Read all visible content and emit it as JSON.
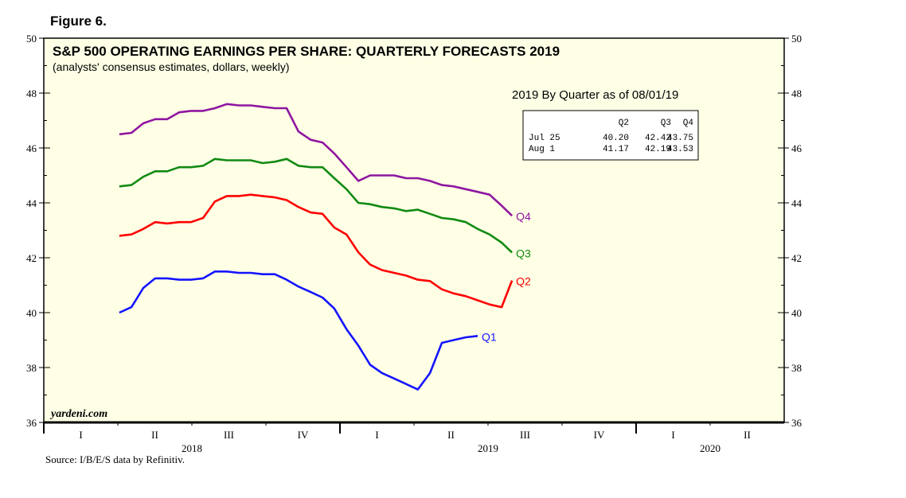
{
  "figure_label": "Figure 6.",
  "source": "Source: I/B/E/S data by Refinitiv.",
  "watermark": "yardeni.com",
  "chart_data": {
    "type": "line",
    "title": "S&P 500 OPERATING EARNINGS PER SHARE: QUARTERLY FORECASTS 2019",
    "subtitle": "(analysts' consensus estimates, dollars, weekly)",
    "xlabel": "",
    "ylabel": "",
    "xlim": [
      2018.0,
      2020.5
    ],
    "ylim": [
      36,
      50
    ],
    "yticks": [
      36,
      38,
      40,
      42,
      44,
      46,
      48,
      50
    ],
    "ytick_labels": [
      "36",
      "38",
      "40",
      "42",
      "44",
      "46",
      "48",
      "50"
    ],
    "quarter_labels": [
      {
        "label": "I",
        "x": 2018.125
      },
      {
        "label": "II",
        "x": 2018.375
      },
      {
        "label": "III",
        "x": 2018.625
      },
      {
        "label": "IV",
        "x": 2018.875
      },
      {
        "label": "I",
        "x": 2019.125
      },
      {
        "label": "II",
        "x": 2019.375
      },
      {
        "label": "III",
        "x": 2019.625
      },
      {
        "label": "IV",
        "x": 2019.875
      },
      {
        "label": "I",
        "x": 2020.125
      },
      {
        "label": "II",
        "x": 2020.375
      }
    ],
    "year_labels": [
      {
        "label": "2018",
        "x": 2018.5
      },
      {
        "label": "2019",
        "x": 2019.5
      },
      {
        "label": "2020",
        "x": 2020.25
      }
    ],
    "grid": false,
    "x": [
      2018.255,
      2018.296,
      2018.336,
      2018.376,
      2018.417,
      2018.457,
      2018.497,
      2018.538,
      2018.578,
      2018.618,
      2018.659,
      2018.699,
      2018.739,
      2018.78,
      2018.82,
      2018.86,
      2018.901,
      2018.941,
      2018.981,
      2019.022,
      2019.062,
      2019.102,
      2019.142,
      2019.183,
      2019.223,
      2019.263,
      2019.304,
      2019.344,
      2019.384,
      2019.425,
      2019.465,
      2019.505,
      2019.546,
      2019.581
    ],
    "series": [
      {
        "name": "Q4",
        "color": "#8E16A0",
        "values": [
          46.5,
          46.55,
          46.9,
          47.05,
          47.05,
          47.3,
          47.35,
          47.35,
          47.45,
          47.6,
          47.55,
          47.55,
          47.5,
          47.45,
          47.45,
          46.6,
          46.3,
          46.2,
          45.8,
          45.3,
          44.8,
          45.0,
          45.0,
          45.0,
          44.9,
          44.9,
          44.8,
          44.65,
          44.6,
          44.5,
          44.4,
          44.3,
          43.9,
          43.53
        ]
      },
      {
        "name": "Q3",
        "color": "#128A12",
        "values": [
          44.6,
          44.65,
          44.95,
          45.15,
          45.15,
          45.3,
          45.3,
          45.35,
          45.6,
          45.55,
          45.55,
          45.55,
          45.45,
          45.5,
          45.6,
          45.35,
          45.3,
          45.3,
          44.9,
          44.5,
          44.0,
          43.95,
          43.85,
          43.8,
          43.7,
          43.75,
          43.6,
          43.45,
          43.4,
          43.3,
          43.05,
          42.85,
          42.55,
          42.19
        ]
      },
      {
        "name": "Q2",
        "color": "#FF0000",
        "values": [
          42.8,
          42.85,
          43.05,
          43.3,
          43.25,
          43.3,
          43.3,
          43.45,
          44.05,
          44.25,
          44.25,
          44.3,
          44.25,
          44.2,
          44.1,
          43.85,
          43.65,
          43.6,
          43.1,
          42.85,
          42.2,
          41.75,
          41.55,
          41.45,
          41.35,
          41.2,
          41.15,
          40.85,
          40.7,
          40.6,
          40.45,
          40.3,
          40.2,
          41.17
        ]
      },
      {
        "name": "Q1",
        "color": "#1414FF",
        "values": [
          40.0,
          40.2,
          40.9,
          41.25,
          41.25,
          41.2,
          41.2,
          41.25,
          41.5,
          41.5,
          41.45,
          41.45,
          41.4,
          41.4,
          41.2,
          40.95,
          40.75,
          40.55,
          40.15,
          39.4,
          38.8,
          38.1,
          37.8,
          37.6,
          37.4,
          37.2,
          37.8,
          38.9,
          39.0,
          39.1,
          39.15,
          null,
          null,
          null
        ]
      }
    ],
    "inset_table": {
      "title": "2019 By Quarter as of 08/01/19",
      "columns": [
        "",
        "Q2",
        "Q3",
        "Q4"
      ],
      "rows": [
        [
          "Jul 25",
          "40.20",
          "42.42",
          "43.75"
        ],
        [
          "Aug  1",
          "41.17",
          "42.19",
          "43.53"
        ]
      ]
    }
  }
}
